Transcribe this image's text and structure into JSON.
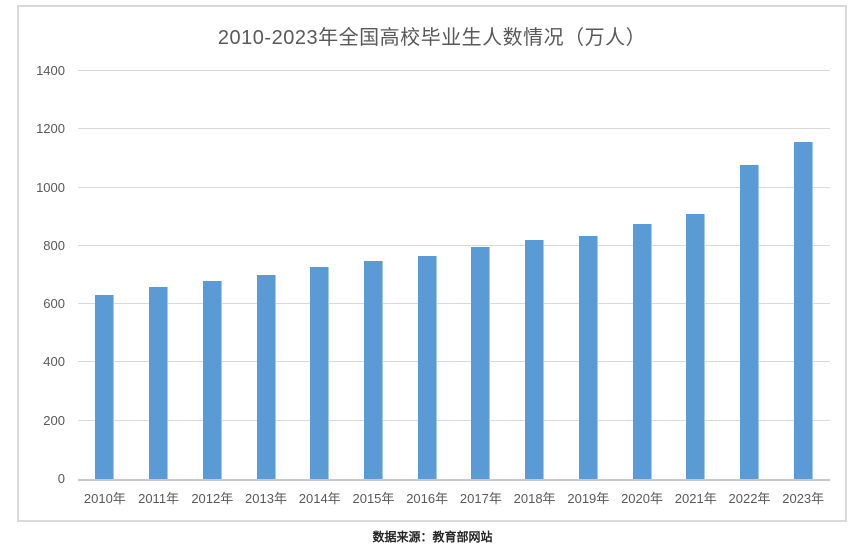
{
  "page": {
    "footer": "数据来源：教育部网站"
  },
  "chart_data": {
    "type": "bar",
    "title": "2010-2023年全国高校毕业生人数情况（万人）",
    "categories": [
      "2010年",
      "2011年",
      "2012年",
      "2013年",
      "2014年",
      "2015年",
      "2016年",
      "2017年",
      "2018年",
      "2019年",
      "2020年",
      "2021年",
      "2022年",
      "2023年"
    ],
    "values": [
      631,
      660,
      680,
      699,
      727,
      749,
      765,
      795,
      820,
      834,
      874,
      909,
      1076,
      1158
    ],
    "xlabel": "",
    "ylabel": "",
    "ylim": [
      0,
      1400
    ],
    "ytick_step": 200,
    "yticks": [
      0,
      200,
      400,
      600,
      800,
      1000,
      1200,
      1400
    ],
    "grid": "horizontal",
    "legend_position": "none",
    "bar_color": "#5b9bd5",
    "gridline_color": "#d9d9d9",
    "title_color": "#595959",
    "tick_label_color": "#595959"
  }
}
